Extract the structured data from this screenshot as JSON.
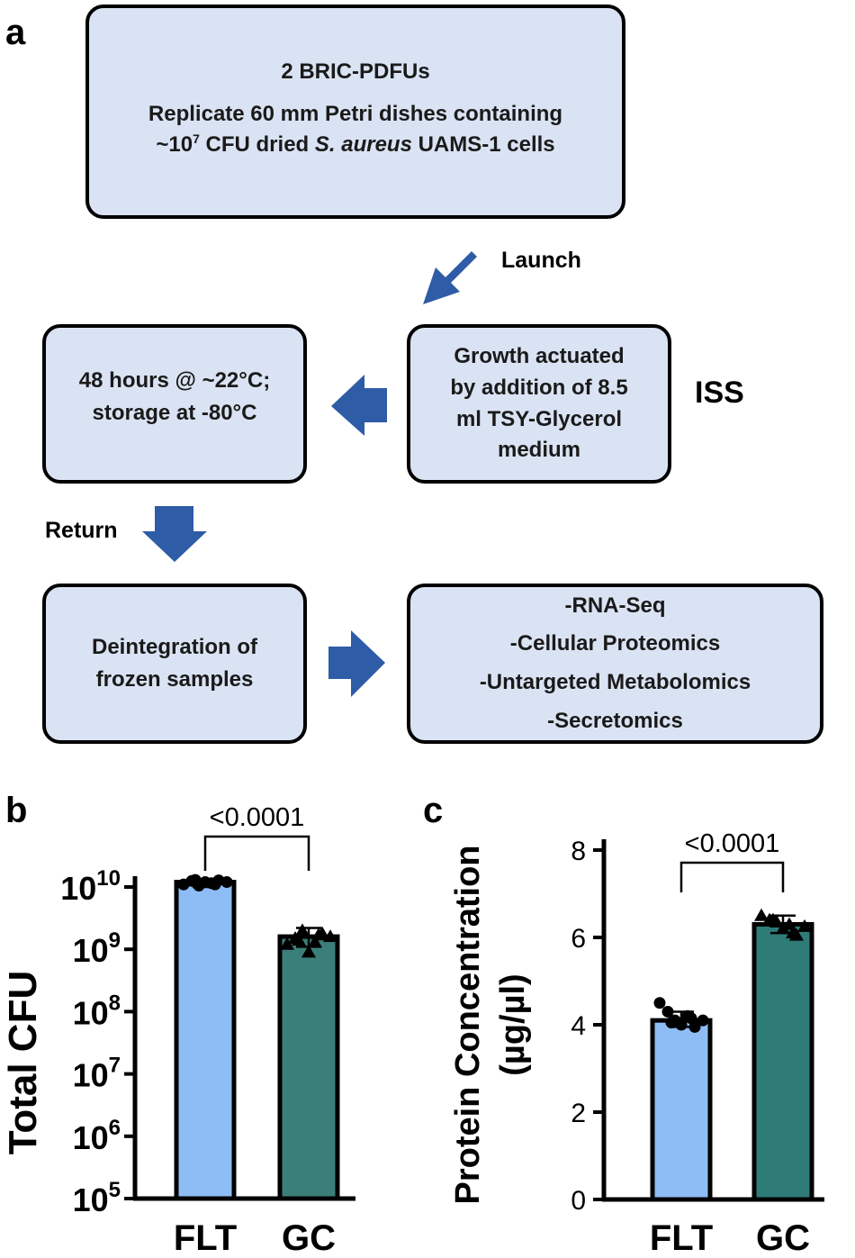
{
  "panel_labels": {
    "a": "a",
    "b": "b",
    "c": "c"
  },
  "flowchart": {
    "box1": {
      "title": "2 BRIC-PDFUs",
      "line2": "Replicate 60 mm Petri dishes containing",
      "line3_pre": "~10",
      "line3_sup": "7",
      "line3_mid": " CFU dried ",
      "line3_italic": "S. aureus",
      "line3_post": " UAMS-1 cells"
    },
    "launch_label": "Launch",
    "growth_box": [
      "Growth actuated",
      "by addition of 8.5",
      "ml TSY-Glycerol",
      "medium"
    ],
    "iss_label": "ISS",
    "storage_box": [
      "48 hours @ ~22°C;",
      "storage at -80°C"
    ],
    "return_label": "Return",
    "deintegration_box": [
      "Deintegration of",
      "frozen samples"
    ],
    "analysis_box": [
      "-RNA-Seq",
      "-Cellular Proteomics",
      "-Untargeted Metabolomics",
      "-Secretomics"
    ],
    "colors": {
      "box_fill": "#dae3f3",
      "arrow": "#2e5ca6"
    }
  },
  "chart_data": [
    {
      "panel": "b",
      "type": "bar",
      "ylabel": "Total CFU",
      "yscale": "log",
      "ylim": [
        100000,
        30000000000
      ],
      "yticks": [
        100000,
        1000000,
        10000000,
        100000000,
        1000000000,
        10000000000
      ],
      "ytick_labels": [
        {
          "base": "10",
          "exp": "5"
        },
        {
          "base": "10",
          "exp": "6"
        },
        {
          "base": "10",
          "exp": "7"
        },
        {
          "base": "10",
          "exp": "8"
        },
        {
          "base": "10",
          "exp": "9"
        },
        {
          "base": "10",
          "exp": "10"
        }
      ],
      "categories": [
        "FLT",
        "GC"
      ],
      "values": [
        12000000000,
        1600000000
      ],
      "errors": [
        [
          10000000000,
          13000000000
        ],
        [
          1100000000,
          2200000000
        ]
      ],
      "points": [
        [
          11000000000,
          12500000000,
          10500000000,
          12000000000,
          11500000000,
          12800000000,
          12000000000,
          13000000000,
          11000000000
        ],
        [
          1200000000,
          1500000000,
          2000000000,
          900000000,
          1300000000,
          1800000000,
          1600000000,
          1400000000,
          1700000000
        ]
      ],
      "colors": [
        "#8ebcf4",
        "#3b7f7a"
      ],
      "markers": [
        "circle",
        "triangle"
      ],
      "significance": "<0.0001"
    },
    {
      "panel": "c",
      "type": "bar",
      "ylabel": [
        "Protein Concentration",
        "(µg/µl)"
      ],
      "ylim": [
        0,
        8
      ],
      "yticks": [
        0,
        2,
        4,
        6,
        8
      ],
      "ytick_labels": [
        "0",
        "2",
        "4",
        "6",
        "8"
      ],
      "categories": [
        "FLT",
        "GC"
      ],
      "values": [
        4.1,
        6.3
      ],
      "errors": [
        [
          3.95,
          4.3
        ],
        [
          6.1,
          6.5
        ]
      ],
      "points": [
        [
          4.5,
          4.3,
          4.1,
          4.0,
          4.2,
          3.95,
          4.1,
          4.05,
          4.15
        ],
        [
          6.5,
          6.4,
          6.35,
          6.2,
          6.3,
          6.05,
          6.25,
          6.4,
          6.1
        ]
      ],
      "colors": [
        "#8ebcf4",
        "#2e7b78"
      ],
      "markers": [
        "circle",
        "triangle"
      ],
      "significance": "<0.0001"
    }
  ]
}
